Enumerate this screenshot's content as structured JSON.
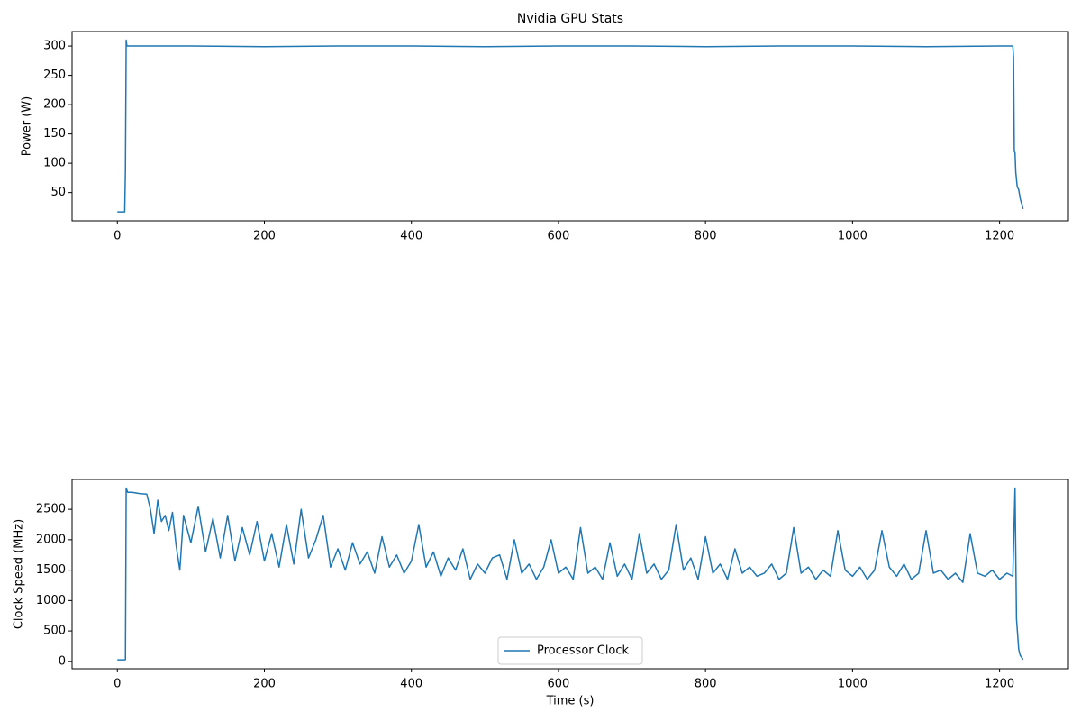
{
  "chart_data": [
    {
      "type": "line",
      "title": "Nvidia GPU Stats",
      "ylabel": "Power (W)",
      "color": "#1f77b4",
      "x": [
        0,
        10,
        11,
        12,
        13,
        100,
        200,
        300,
        400,
        500,
        600,
        700,
        800,
        900,
        1000,
        1100,
        1200,
        1218,
        1219,
        1220,
        1221,
        1222,
        1224,
        1226,
        1228,
        1232
      ],
      "values": [
        17,
        17,
        90,
        310,
        300,
        300,
        299,
        300,
        300,
        299,
        300,
        300,
        299,
        300,
        300,
        299,
        300,
        300,
        280,
        120,
        118,
        85,
        60,
        55,
        40,
        22
      ],
      "xlim": [
        -61.6,
        1293.6
      ],
      "ylim": [
        1.8,
        324.7
      ],
      "xticks": [
        0,
        200,
        400,
        600,
        800,
        1000,
        1200
      ],
      "yticks": [
        50,
        100,
        150,
        200,
        250,
        300
      ]
    },
    {
      "type": "line",
      "xlabel": "Time (s)",
      "ylabel": "Clock Speed (MHz)",
      "legend": "lower center",
      "x": [
        0,
        10,
        11,
        12,
        14,
        20,
        30,
        40,
        45,
        50,
        55,
        60,
        65,
        70,
        75,
        80,
        85,
        90,
        100,
        110,
        120,
        130,
        140,
        150,
        160,
        170,
        180,
        190,
        200,
        210,
        220,
        230,
        240,
        250,
        260,
        270,
        280,
        290,
        300,
        310,
        320,
        330,
        340,
        350,
        360,
        370,
        380,
        390,
        400,
        410,
        420,
        430,
        440,
        450,
        460,
        470,
        480,
        490,
        500,
        510,
        520,
        530,
        540,
        550,
        560,
        570,
        580,
        590,
        600,
        610,
        620,
        630,
        640,
        650,
        660,
        670,
        680,
        690,
        700,
        710,
        720,
        730,
        740,
        750,
        760,
        770,
        780,
        790,
        800,
        810,
        820,
        830,
        840,
        850,
        860,
        870,
        880,
        890,
        900,
        910,
        920,
        930,
        940,
        950,
        960,
        970,
        980,
        990,
        1000,
        1010,
        1020,
        1030,
        1040,
        1050,
        1060,
        1070,
        1080,
        1090,
        1100,
        1110,
        1120,
        1130,
        1140,
        1150,
        1160,
        1170,
        1180,
        1190,
        1200,
        1210,
        1218,
        1221,
        1223,
        1226,
        1228,
        1232
      ],
      "series": [
        {
          "name": "Processor Clock",
          "color": "#1f77b4",
          "values": [
            25,
            25,
            30,
            2850,
            2780,
            2780,
            2760,
            2750,
            2500,
            2100,
            2650,
            2300,
            2400,
            2150,
            2450,
            1900,
            1500,
            2400,
            1950,
            2550,
            1800,
            2350,
            1700,
            2400,
            1650,
            2200,
            1750,
            2300,
            1650,
            2100,
            1550,
            2250,
            1600,
            2500,
            1700,
            2000,
            2400,
            1550,
            1850,
            1500,
            1950,
            1600,
            1800,
            1450,
            2050,
            1550,
            1750,
            1450,
            1650,
            2250,
            1550,
            1800,
            1400,
            1700,
            1500,
            1850,
            1350,
            1600,
            1450,
            1700,
            1750,
            1350,
            2000,
            1450,
            1600,
            1350,
            1550,
            2000,
            1450,
            1550,
            1350,
            2200,
            1450,
            1550,
            1350,
            1950,
            1400,
            1600,
            1350,
            2100,
            1450,
            1600,
            1350,
            1500,
            2250,
            1500,
            1700,
            1350,
            2050,
            1450,
            1600,
            1350,
            1850,
            1450,
            1550,
            1400,
            1450,
            1600,
            1350,
            1450,
            2200,
            1450,
            1550,
            1350,
            1500,
            1400,
            2150,
            1500,
            1400,
            1550,
            1350,
            1500,
            2150,
            1550,
            1400,
            1600,
            1350,
            1450,
            2150,
            1450,
            1500,
            1350,
            1450,
            1300,
            2100,
            1450,
            1400,
            1500,
            1350,
            1450,
            1400,
            2850,
            700,
            200,
            100,
            30
          ]
        }
      ],
      "xlim": [
        -61.6,
        1293.6
      ],
      "ylim": [
        -121,
        2991
      ],
      "xticks": [
        0,
        200,
        400,
        600,
        800,
        1000,
        1200
      ],
      "yticks": [
        0,
        500,
        1000,
        1500,
        2000,
        2500
      ]
    }
  ]
}
